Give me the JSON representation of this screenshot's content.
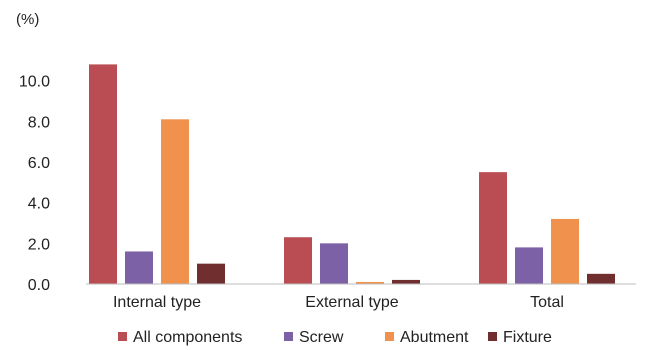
{
  "chart_data": {
    "type": "bar",
    "unit_label": "(%)",
    "categories": [
      "Internal type",
      "External type",
      "Total"
    ],
    "series": [
      {
        "name": "All components",
        "color": "#B94D53",
        "values": [
          10.8,
          2.3,
          5.5
        ]
      },
      {
        "name": "Screw",
        "color": "#7D61A7",
        "values": [
          1.6,
          2.0,
          1.8
        ]
      },
      {
        "name": "Abutment",
        "color": "#F0914D",
        "values": [
          8.1,
          0.1,
          3.2
        ]
      },
      {
        "name": "Fixture",
        "color": "#702E2E",
        "values": [
          1.0,
          0.2,
          0.5
        ]
      }
    ],
    "y_ticks": [
      "0.0",
      "2.0",
      "4.0",
      "6.0",
      "8.0",
      "10.0"
    ],
    "ylim": [
      0,
      12
    ],
    "grid": false,
    "legend_position": "bottom"
  }
}
